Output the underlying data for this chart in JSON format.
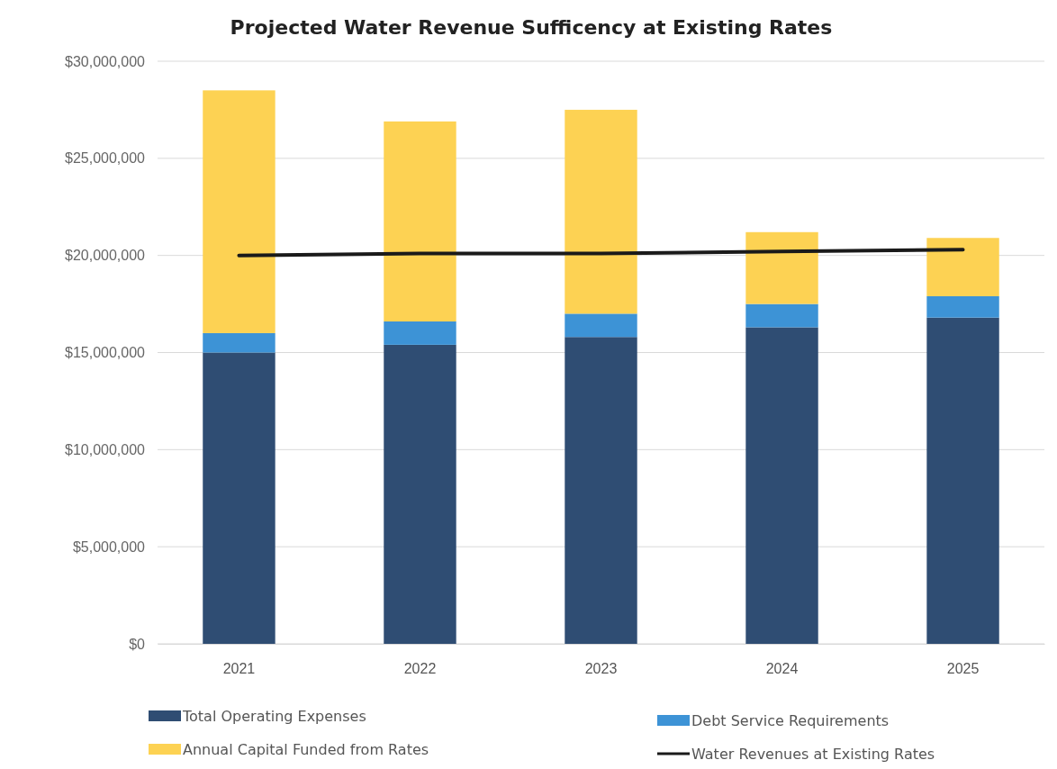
{
  "chart_data": {
    "type": "bar",
    "title": "Projected Water Revenue Sufficency at Existing Rates",
    "categories": [
      "2021",
      "2022",
      "2023",
      "2024",
      "2025"
    ],
    "stacked": true,
    "series": [
      {
        "name": "Total Operating Expenses",
        "color": "#2f4d73",
        "values": [
          15000000,
          15400000,
          15800000,
          16300000,
          16800000
        ]
      },
      {
        "name": "Debt Service Requirements",
        "color": "#3d93d6",
        "values": [
          1000000,
          1200000,
          1200000,
          1200000,
          1100000
        ]
      },
      {
        "name": "Annual Capital Funded from Rates",
        "color": "#fdd253",
        "values": [
          12500000,
          10300000,
          10500000,
          3700000,
          3000000
        ]
      },
      {
        "name": "Water Revenues at Existing Rates",
        "type": "line",
        "color": "#1a1a1a",
        "values": [
          20000000,
          20100000,
          20100000,
          20200000,
          20300000
        ]
      }
    ],
    "ylim": [
      0,
      30000000
    ],
    "yticks": [
      {
        "value": 0,
        "label": "$0"
      },
      {
        "value": 5000000,
        "label": "$5,000,000"
      },
      {
        "value": 10000000,
        "label": "$10,000,000"
      },
      {
        "value": 15000000,
        "label": "$15,000,000"
      },
      {
        "value": 20000000,
        "label": "$20,000,000"
      },
      {
        "value": 25000000,
        "label": "$25,000,000"
      },
      {
        "value": 30000000,
        "label": "$30,000,000"
      }
    ],
    "grid": "y",
    "legend": "bottom"
  }
}
